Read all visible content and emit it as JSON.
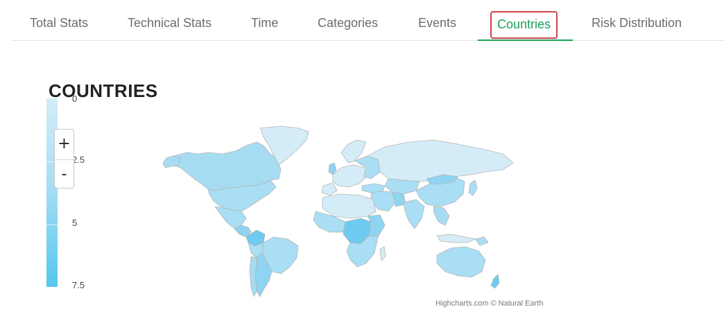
{
  "tabs": [
    {
      "label": "Total Stats"
    },
    {
      "label": "Technical Stats"
    },
    {
      "label": "Time"
    },
    {
      "label": "Categories"
    },
    {
      "label": "Events"
    },
    {
      "label": "Countries",
      "active": true
    },
    {
      "label": "Risk Distribution"
    }
  ],
  "chart": {
    "title": "COUNTRIES",
    "credits": "Highcharts.com © Natural Earth",
    "zoom_in_label": "+",
    "zoom_out_label": "-"
  },
  "chart_data": {
    "type": "heatmap",
    "title": "COUNTRIES",
    "color_axis": {
      "min": 0,
      "max": 7.5,
      "tick_labels": [
        "0",
        "2.5",
        "5",
        "7.5"
      ],
      "min_color": "#d4ecf7",
      "max_color": "#55c7ee"
    },
    "map": "world",
    "legend": "left-vertical"
  },
  "colors": {
    "active_tab": "#1aa05a",
    "active_tab_border": "#d0424a",
    "map_fill_light": "#d4ecf7",
    "map_fill_mid": "#a9def4",
    "map_fill_dark": "#55c7ee",
    "map_border": "#b5b5b5"
  }
}
